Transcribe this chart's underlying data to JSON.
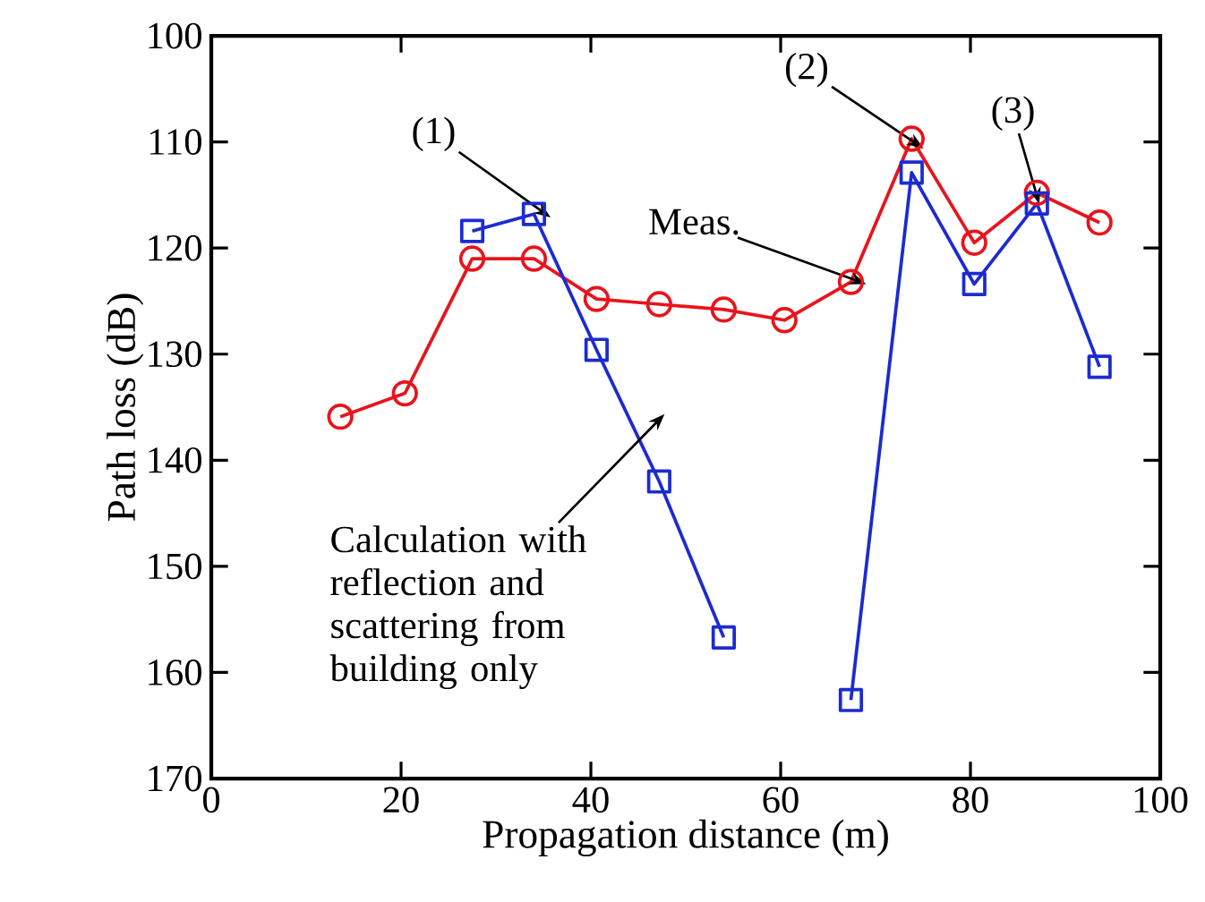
{
  "chart_data": {
    "type": "line",
    "xlabel": "Propagation distance (m)",
    "ylabel": "Path loss (dB)",
    "xlim": [
      0,
      100
    ],
    "xticks": [
      0,
      20,
      40,
      60,
      80,
      100
    ],
    "ylim": [
      170,
      100
    ],
    "yticks": [
      100,
      110,
      120,
      130,
      140,
      150,
      160,
      170
    ],
    "grid": false,
    "series": [
      {
        "color": "#e8141c",
        "marker": "circle",
        "x": [
          13.6,
          20.4,
          27.5,
          34,
          40.6,
          47.2,
          54,
          60.4,
          67.4,
          73.8,
          80.4,
          87,
          93.6
        ],
        "values": [
          135.9,
          133.7,
          121.0,
          121.0,
          124.8,
          125.3,
          125.8,
          126.8,
          123.2,
          109.7,
          119.5,
          114.8,
          117.6
        ]
      },
      {
        "color": "#1c2bd0",
        "marker": "square",
        "x": [
          27.5,
          34,
          40.6,
          47.2,
          54,
          60.5,
          67.4,
          73.8,
          80.4,
          87,
          93.6
        ],
        "values": [
          118.4,
          116.8,
          129.6,
          142.0,
          156.7,
          null,
          162.6,
          112.9,
          123.4,
          115.8,
          131.2
        ]
      }
    ],
    "annotations": [
      {
        "text": "(1)",
        "x": 34,
        "y": 116
      },
      {
        "text": "(2)",
        "x": 73.3,
        "y": 109.5
      },
      {
        "text": "(3)",
        "x": 87,
        "y": 114.5
      },
      {
        "text": "Meas.",
        "x": 66.5,
        "y": 122.5
      },
      {
        "text": "Calculation with reflection and scattering from building only",
        "x": 45,
        "y": 137
      }
    ]
  }
}
